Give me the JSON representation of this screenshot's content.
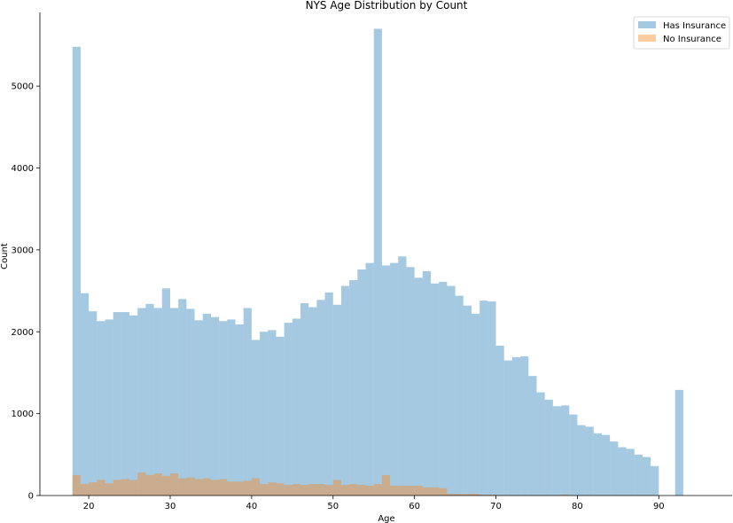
{
  "chart_data": {
    "type": "bar",
    "title": "NYS Age Distribution by Count",
    "xlabel": "Age",
    "ylabel": "Count",
    "xlim": [
      14,
      99
    ],
    "ylim": [
      0,
      5900
    ],
    "xticks": [
      20,
      30,
      40,
      50,
      60,
      70,
      80,
      90
    ],
    "yticks": [
      0,
      1000,
      2000,
      3000,
      4000,
      5000
    ],
    "grid": false,
    "legend_position": "top-right",
    "bin_start": 18,
    "bin_width": 1,
    "series": [
      {
        "name": "Has Insurance",
        "color": "#1f77b4",
        "values": [
          5480,
          2470,
          2250,
          2130,
          2150,
          2240,
          2240,
          2200,
          2290,
          2340,
          2290,
          2530,
          2290,
          2400,
          2280,
          2140,
          2220,
          2180,
          2130,
          2150,
          2090,
          2290,
          1900,
          2000,
          2020,
          1940,
          2110,
          2160,
          2350,
          2300,
          2390,
          2480,
          2330,
          2560,
          2630,
          2760,
          2840,
          5700,
          2810,
          2840,
          2920,
          2790,
          2660,
          2740,
          2590,
          2610,
          2560,
          2440,
          2320,
          2220,
          2380,
          2370,
          1830,
          1650,
          1690,
          1700,
          1460,
          1260,
          1170,
          1090,
          1100,
          990,
          860,
          840,
          760,
          740,
          660,
          590,
          570,
          500,
          470,
          360,
          0,
          0,
          1290
        ]
      },
      {
        "name": "No Insurance",
        "color": "#ff7f0e",
        "values": [
          250,
          140,
          160,
          190,
          150,
          190,
          200,
          190,
          280,
          250,
          270,
          240,
          270,
          210,
          220,
          200,
          210,
          190,
          200,
          170,
          170,
          180,
          210,
          140,
          160,
          150,
          130,
          140,
          130,
          140,
          140,
          130,
          190,
          130,
          140,
          130,
          120,
          140,
          250,
          120,
          120,
          120,
          120,
          100,
          100,
          90,
          20,
          20,
          20,
          20,
          10,
          10,
          5,
          5,
          5,
          5,
          5,
          5,
          5,
          5,
          10,
          5,
          5,
          5,
          5,
          5,
          5,
          5,
          5,
          5,
          5,
          5,
          0,
          0,
          0
        ]
      }
    ]
  }
}
